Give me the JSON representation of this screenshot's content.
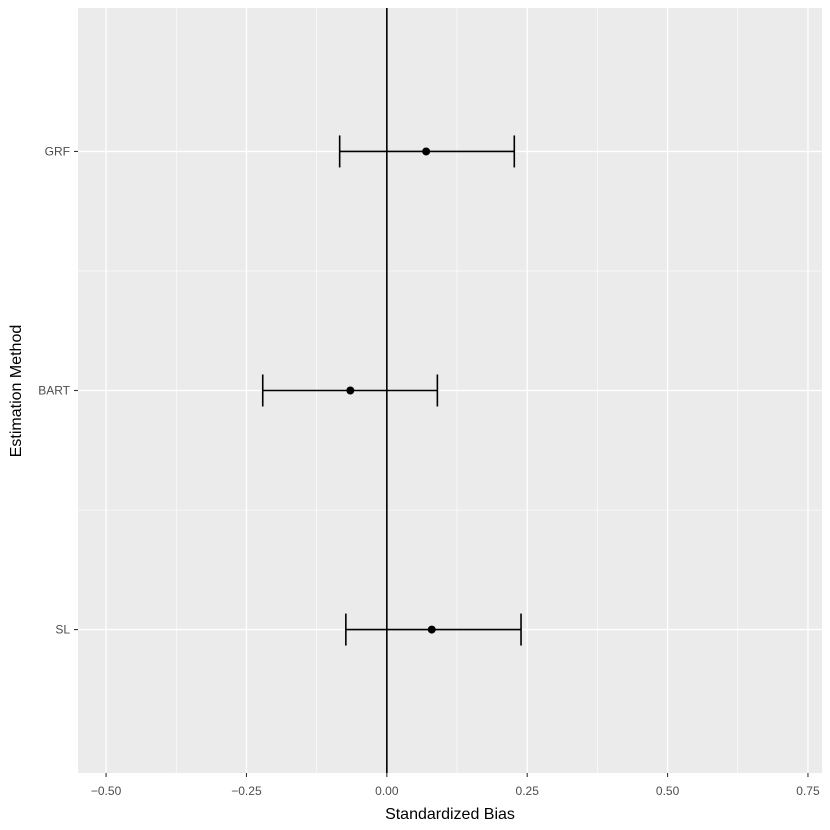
{
  "chart_data": {
    "type": "errorbar",
    "xlabel": "Standardized Bias",
    "ylabel": "Estimation Method",
    "xlim": [
      -0.55,
      0.775
    ],
    "x_ticks": [
      -0.5,
      -0.25,
      0.0,
      0.25,
      0.5,
      0.75
    ],
    "x_tick_labels": [
      "−0.50",
      "−0.25",
      "0.00",
      "0.25",
      "0.50",
      "0.75"
    ],
    "categories": [
      "GRF",
      "BART",
      "SL"
    ],
    "points": [
      {
        "category": "GRF",
        "estimate": 0.07,
        "lower": -0.084,
        "upper": 0.227
      },
      {
        "category": "BART",
        "estimate": -0.065,
        "lower": -0.221,
        "upper": 0.09
      },
      {
        "category": "SL",
        "estimate": 0.08,
        "lower": -0.073,
        "upper": 0.239
      }
    ],
    "reference_line_x": 0.0,
    "grid": true,
    "colors": {
      "panel": "#ebebeb",
      "grid": "#ffffff",
      "mark": "#000000"
    }
  }
}
